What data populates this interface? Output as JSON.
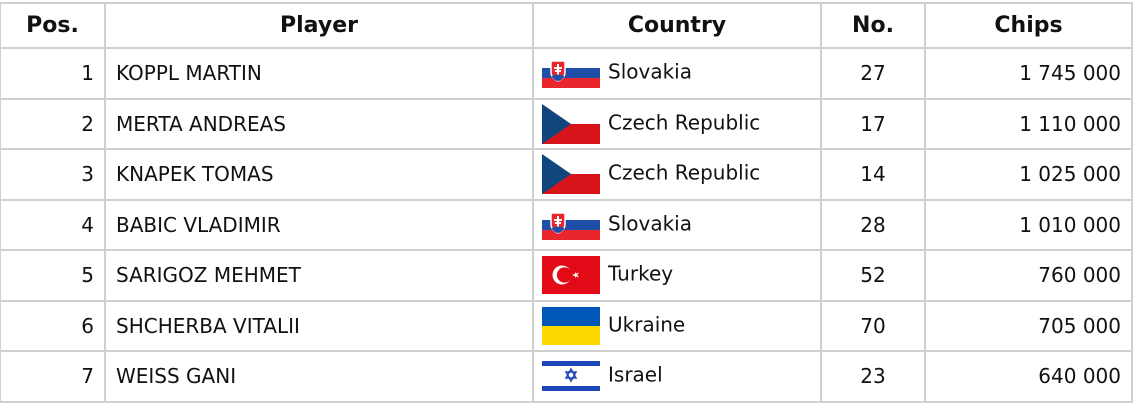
{
  "headers": {
    "pos": "Pos.",
    "player": "Player",
    "country": "Country",
    "no": "No.",
    "chips": "Chips"
  },
  "rows": [
    {
      "pos": "1",
      "player": "KOPPL MARTIN",
      "flag": "slovakia-flag",
      "country": "Slovakia",
      "no": "27",
      "chips": "1 745 000"
    },
    {
      "pos": "2",
      "player": "MERTA ANDREAS",
      "flag": "czech-flag",
      "country": "Czech Republic",
      "no": "17",
      "chips": "1 110 000"
    },
    {
      "pos": "3",
      "player": "KNAPEK TOMAS",
      "flag": "czech-flag",
      "country": "Czech Republic",
      "no": "14",
      "chips": "1 025 000"
    },
    {
      "pos": "4",
      "player": "BABIC VLADIMIR",
      "flag": "slovakia-flag",
      "country": "Slovakia",
      "no": "28",
      "chips": "1 010 000"
    },
    {
      "pos": "5",
      "player": "SARIGOZ MEHMET",
      "flag": "turkey-flag",
      "country": "Turkey",
      "no": "52",
      "chips": "760 000"
    },
    {
      "pos": "6",
      "player": "SHCHERBA VITALII",
      "flag": "ukraine-flag",
      "country": "Ukraine",
      "no": "70",
      "chips": "705 000"
    },
    {
      "pos": "7",
      "player": "WEISS GANI",
      "flag": "israel-flag",
      "country": "Israel",
      "no": "23",
      "chips": "640 000"
    }
  ]
}
